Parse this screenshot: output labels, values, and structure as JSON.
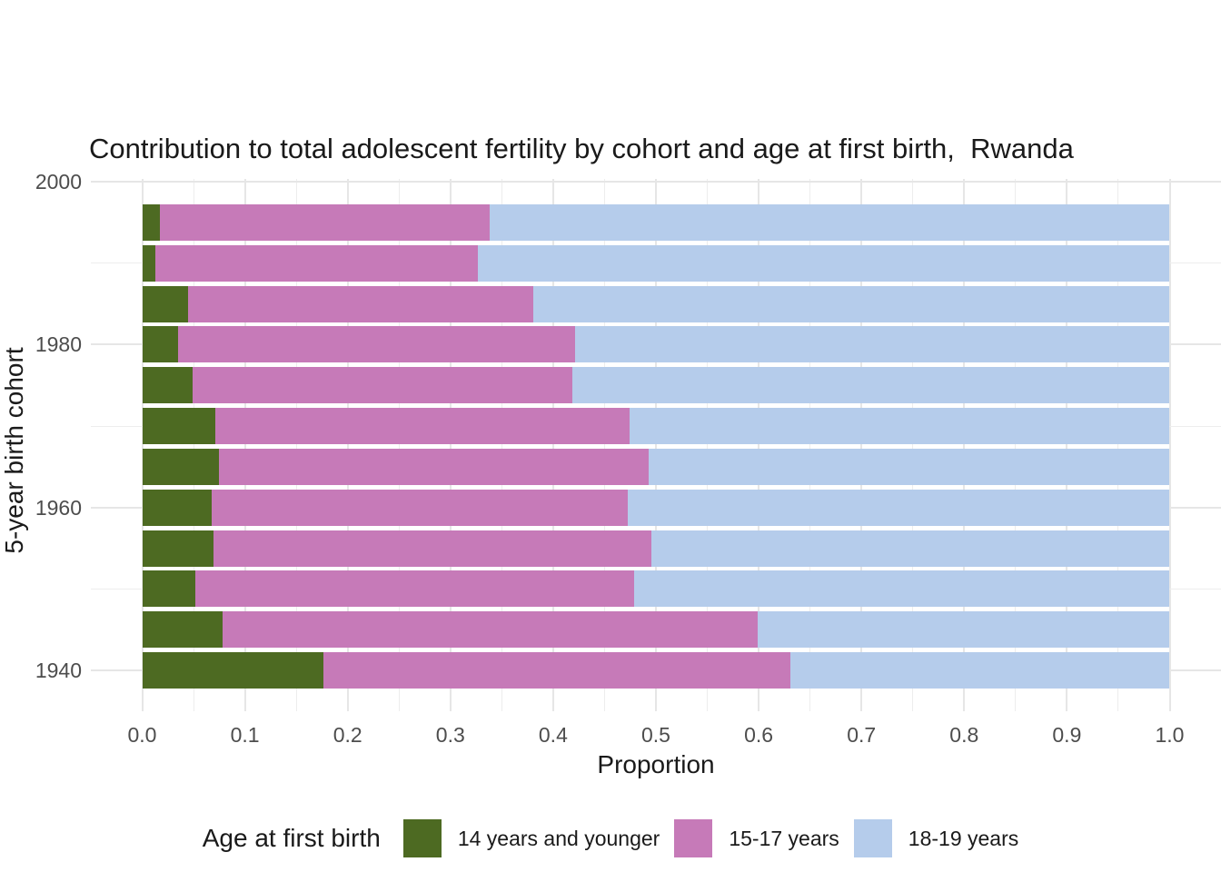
{
  "title": "Contribution to total adolescent fertility by cohort and age at first birth,  Rwanda",
  "x_axis": {
    "label": "Proportion",
    "tick_labels": [
      "0.0",
      "0.1",
      "0.2",
      "0.3",
      "0.4",
      "0.5",
      "0.6",
      "0.7",
      "0.8",
      "0.9",
      "1.0"
    ],
    "range": [
      0,
      1
    ]
  },
  "y_axis": {
    "label": "5-year birth cohort",
    "tick_labels": [
      "1940",
      "1960",
      "1980",
      "2000"
    ],
    "minor_gridlines": [
      1950,
      1970,
      1990
    ],
    "range": [
      1935,
      2000.4
    ]
  },
  "legend": {
    "title": "Age at first birth",
    "items": [
      {
        "label": "14 years and younger",
        "color": "#4D6A22"
      },
      {
        "label": "15-17 years",
        "color": "#C67AB8"
      },
      {
        "label": "18-19 years",
        "color": "#B5CCEB"
      }
    ]
  },
  "colors": {
    "background": "#FFFFFF",
    "grid_major": "#E6E6E6",
    "grid_minor": "#EDEDED",
    "tick_label": "#4D4D4D",
    "text": "#1A1A1A",
    "green": "#4D6A22",
    "pink": "#C67AB8",
    "blue": "#B5CCEB"
  },
  "chart_data": {
    "type": "bar",
    "orientation": "horizontal",
    "stacked": true,
    "title": "Contribution to total adolescent fertility by cohort and age at first birth,  Rwanda",
    "xlabel": "Proportion",
    "ylabel": "5-year birth cohort",
    "xlim": [
      0,
      1
    ],
    "grid": true,
    "legend_position": "bottom",
    "categories": [
      1940,
      1945,
      1950,
      1955,
      1960,
      1965,
      1970,
      1975,
      1980,
      1985,
      1990,
      1995
    ],
    "series": [
      {
        "name": "14 years and younger",
        "color": "#4D6A22",
        "values": [
          0.176,
          0.078,
          0.052,
          0.069,
          0.068,
          0.075,
          0.071,
          0.049,
          0.035,
          0.045,
          0.013,
          0.017
        ]
      },
      {
        "name": "15-17 years",
        "color": "#C67AB8",
        "values": [
          0.455,
          0.521,
          0.427,
          0.427,
          0.405,
          0.418,
          0.403,
          0.37,
          0.386,
          0.336,
          0.314,
          0.321
        ]
      },
      {
        "name": "18-19 years",
        "color": "#B5CCEB",
        "values": [
          0.369,
          0.401,
          0.521,
          0.504,
          0.527,
          0.507,
          0.526,
          0.581,
          0.579,
          0.619,
          0.673,
          0.662
        ]
      }
    ]
  }
}
